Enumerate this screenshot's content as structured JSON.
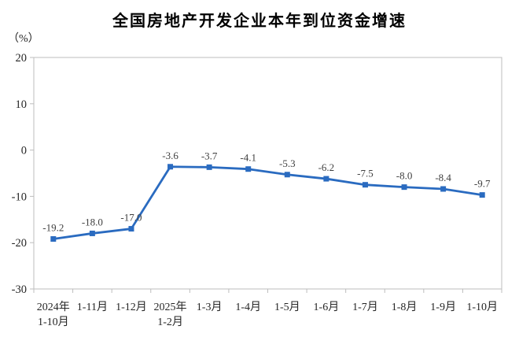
{
  "title": "全国房地产开发企业本年到位资金增速",
  "chart_data": {
    "type": "line",
    "title": "全国房地产开发企业本年到位资金增速",
    "ylabel": "（%）",
    "xlabel": "",
    "categories": [
      "2024年\n1-10月",
      "1-11月",
      "1-12月",
      "2025年\n1-2月",
      "1-3月",
      "1-4月",
      "1-5月",
      "1-6月",
      "1-7月",
      "1-8月",
      "1-9月",
      "1-10月"
    ],
    "values": [
      -19.2,
      -18.0,
      -17.0,
      -3.6,
      -3.7,
      -4.1,
      -5.3,
      -6.2,
      -7.5,
      -8.0,
      -8.4,
      -9.7
    ],
    "data_labels": [
      "-19.2",
      "-18.0",
      "-17.0",
      "-3.6",
      "-3.7",
      "-4.1",
      "-5.3",
      "-6.2",
      "-7.5",
      "-8.0",
      "-8.4",
      "-9.7"
    ],
    "ylim": [
      -30,
      20
    ],
    "yticks": [
      20,
      10,
      0,
      -10,
      -20,
      -30
    ],
    "grid": false,
    "legend": "none",
    "colors": {
      "line": "#2A6BC0",
      "marker": "#2A6BC0",
      "axis": "#BDBDBD",
      "tick_label": "#262626",
      "data_label": "#404040",
      "title": "#000000"
    }
  }
}
